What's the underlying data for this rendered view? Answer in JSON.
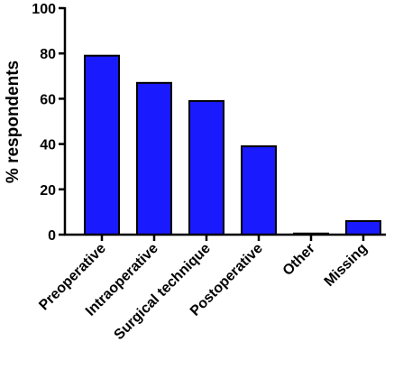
{
  "chart_data": {
    "type": "bar",
    "categories": [
      "Preoperative",
      "Intraoperative",
      "Surgical technique",
      "Postoperative",
      "Other",
      "Missing"
    ],
    "values": [
      79,
      67,
      59,
      39,
      0.5,
      6
    ],
    "ylabel": "% respondents",
    "xlabel": "",
    "ylim": [
      0,
      100
    ],
    "yticks": [
      0,
      20,
      40,
      60,
      80,
      100
    ],
    "bar_color": "#1a1aff",
    "grid": false
  }
}
